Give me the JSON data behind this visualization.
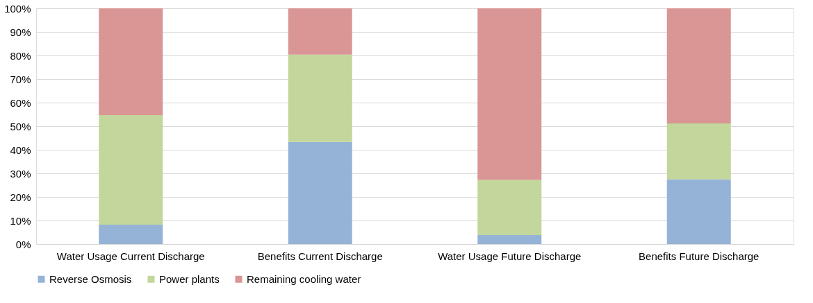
{
  "chart_data": {
    "type": "bar",
    "stacked": true,
    "categories": [
      "Water Usage Current Discharge",
      "Benefits Current Discharge",
      "Water Usage Future Discharge",
      "Benefits Future Discharge"
    ],
    "series": [
      {
        "name": "Reverse Osmosis",
        "color": "#95b3d7",
        "values": [
          8.2,
          43.3,
          3.8,
          27.5
        ]
      },
      {
        "name": "Power plants",
        "color": "#c3d69b",
        "values": [
          46.5,
          37.1,
          23.4,
          23.7
        ]
      },
      {
        "name": "Remaining cooling water",
        "color": "#d99694",
        "values": [
          45.3,
          19.6,
          72.8,
          48.8
        ]
      }
    ],
    "ylim": [
      0,
      100
    ],
    "yticks": [
      {
        "value": 0,
        "label": "0%"
      },
      {
        "value": 10,
        "label": "10%"
      },
      {
        "value": 20,
        "label": "20%"
      },
      {
        "value": 30,
        "label": "30%"
      },
      {
        "value": 40,
        "label": "40%"
      },
      {
        "value": 50,
        "label": "50%"
      },
      {
        "value": 60,
        "label": "60%"
      },
      {
        "value": 70,
        "label": "70%"
      },
      {
        "value": 80,
        "label": "80%"
      },
      {
        "value": 90,
        "label": "90%"
      },
      {
        "value": 100,
        "label": "100%"
      }
    ],
    "grid": "y",
    "legend": "bottom"
  }
}
